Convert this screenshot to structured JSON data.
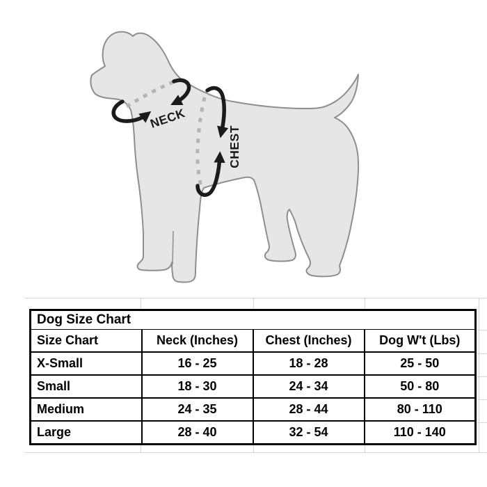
{
  "illustration": {
    "neck_label": "NECK",
    "chest_label": "CHEST",
    "colors": {
      "body_fill": "#e6e6e6",
      "body_stroke": "#8e8e8e",
      "arrow": "#1b1b1b",
      "dash": "#b4b4b4"
    }
  },
  "size_table": {
    "title": "Dog Size Chart",
    "columns": [
      "Size Chart",
      "Neck (Inches)",
      "Chest (Inches)",
      "Dog W't (Lbs)"
    ],
    "rows": [
      {
        "size": "X-Small",
        "neck": "16 - 25",
        "chest": "18 - 28",
        "weight": "25 - 50"
      },
      {
        "size": "Small",
        "neck": "18 - 30",
        "chest": "24 - 34",
        "weight": "50 - 80"
      },
      {
        "size": "Medium",
        "neck": "24 - 35",
        "chest": "28 - 44",
        "weight": "80 - 110"
      },
      {
        "size": "Large",
        "neck": "28 - 40",
        "chest": "32 - 54",
        "weight": "110 - 140"
      }
    ]
  }
}
